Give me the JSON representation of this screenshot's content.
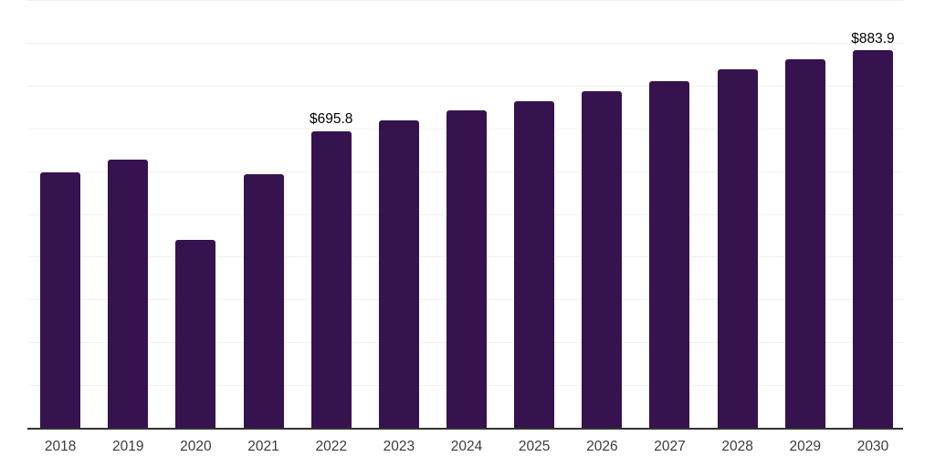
{
  "chart_data": {
    "type": "bar",
    "title": "",
    "xlabel": "",
    "ylabel": "",
    "categories": [
      "2018",
      "2019",
      "2020",
      "2021",
      "2022",
      "2023",
      "2024",
      "2025",
      "2026",
      "2027",
      "2028",
      "2029",
      "2030"
    ],
    "values": [
      599,
      629,
      442,
      594,
      695.8,
      720,
      744,
      766,
      790,
      813,
      841,
      863,
      883.9
    ],
    "data_labels": [
      "",
      "",
      "",
      "",
      "$695.8",
      "",
      "",
      "",
      "",
      "",
      "",
      "",
      "$883.9"
    ],
    "ylim": [
      0,
      1000
    ],
    "grid_step": 100,
    "grid": true,
    "legend": false,
    "colors": {
      "bar": "#36124e",
      "gridline": "#f1f1f3",
      "axis_line": "#333333",
      "tick_label": "#3b3b3b",
      "data_label": "#000000",
      "background": "#ffffff"
    }
  }
}
